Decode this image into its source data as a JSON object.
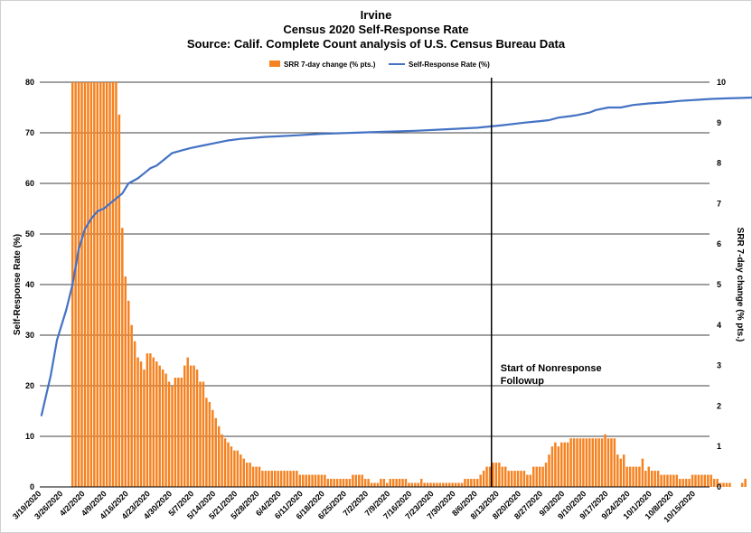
{
  "chart_data": {
    "type": "bar+line",
    "title": "Irvine",
    "subtitle": "Census 2020 Self-Response Rate",
    "source": "Source: Calif. Complete Count analysis of U.S. Census Bureau Data",
    "ylabel_left": "Self-Response Rate (%)",
    "ylabel_right": "SRR 7-day change (% pts.)",
    "ylim_left": [
      0,
      80
    ],
    "ylim_right": [
      0,
      10
    ],
    "yticks_left": [
      "0",
      "10",
      "20",
      "30",
      "40",
      "50",
      "60",
      "70",
      "80"
    ],
    "yticks_right": [
      "0",
      "1",
      "2",
      "3",
      "4",
      "5",
      "6",
      "7",
      "8",
      "9",
      "10"
    ],
    "grid": "horizontal",
    "legend_position": "top",
    "start_date": "3/19/2020",
    "x_tick_labels": [
      "3/19/2020",
      "3/26/2020",
      "4/2/2020",
      "4/9/2020",
      "4/16/2020",
      "4/23/2020",
      "4/30/2020",
      "5/7/2020",
      "5/14/2020",
      "5/21/2020",
      "5/28/2020",
      "6/4/2020",
      "6/11/2020",
      "6/18/2020",
      "6/25/2020",
      "7/2/2020",
      "7/9/2020",
      "7/16/2020",
      "7/23/2020",
      "7/30/2020",
      "8/6/2020",
      "8/13/2020",
      "8/20/2020",
      "8/27/2020",
      "9/3/2020",
      "9/10/2020",
      "9/17/2020",
      "9/24/2020",
      "10/1/2020",
      "10/8/2020",
      "10/15/2020"
    ],
    "series": [
      {
        "name": "SRR 7-day change (% pts.)",
        "type": "bar",
        "axis": "right",
        "color": "#F58220",
        "values": [
          0,
          0,
          0,
          0,
          0,
          0,
          0,
          0,
          0,
          0,
          10,
          10,
          10,
          10,
          10,
          10,
          10,
          10,
          10,
          10,
          10,
          10,
          10,
          10,
          10,
          9.2,
          6.4,
          5.2,
          4.6,
          4.0,
          3.6,
          3.2,
          3.1,
          2.9,
          3.3,
          3.3,
          3.2,
          3.1,
          3.0,
          2.9,
          2.8,
          2.6,
          2.5,
          2.7,
          2.7,
          2.7,
          3.0,
          3.2,
          3.0,
          3.0,
          2.9,
          2.6,
          2.6,
          2.2,
          2.1,
          1.9,
          1.7,
          1.5,
          1.3,
          1.2,
          1.1,
          1.0,
          0.9,
          0.9,
          0.8,
          0.7,
          0.6,
          0.6,
          0.5,
          0.5,
          0.5,
          0.4,
          0.4,
          0.4,
          0.4,
          0.4,
          0.4,
          0.4,
          0.4,
          0.4,
          0.4,
          0.4,
          0.4,
          0.3,
          0.3,
          0.3,
          0.3,
          0.3,
          0.3,
          0.3,
          0.3,
          0.3,
          0.2,
          0.2,
          0.2,
          0.2,
          0.2,
          0.2,
          0.2,
          0.2,
          0.3,
          0.3,
          0.3,
          0.3,
          0.2,
          0.2,
          0.1,
          0.1,
          0.1,
          0.2,
          0.2,
          0.1,
          0.2,
          0.2,
          0.2,
          0.2,
          0.2,
          0.2,
          0.1,
          0.1,
          0.1,
          0.1,
          0.2,
          0.1,
          0.1,
          0.1,
          0.1,
          0.1,
          0.1,
          0.1,
          0.1,
          0.1,
          0.1,
          0.1,
          0.1,
          0.1,
          0.2,
          0.2,
          0.2,
          0.2,
          0.2,
          0.3,
          0.4,
          0.5,
          0.5,
          0.6,
          0.6,
          0.6,
          0.5,
          0.5,
          0.4,
          0.4,
          0.4,
          0.4,
          0.4,
          0.4,
          0.3,
          0.3,
          0.5,
          0.5,
          0.5,
          0.5,
          0.6,
          0.8,
          1.0,
          1.1,
          1.0,
          1.1,
          1.1,
          1.1,
          1.2,
          1.2,
          1.2,
          1.2,
          1.2,
          1.2,
          1.2,
          1.2,
          1.2,
          1.2,
          1.2,
          1.3,
          1.2,
          1.2,
          1.2,
          0.8,
          0.7,
          0.8,
          0.5,
          0.5,
          0.5,
          0.5,
          0.5,
          0.7,
          0.4,
          0.5,
          0.4,
          0.4,
          0.4,
          0.3,
          0.3,
          0.3,
          0.3,
          0.3,
          0.3,
          0.2,
          0.2,
          0.2,
          0.2,
          0.3,
          0.3,
          0.3,
          0.3,
          0.3,
          0.3,
          0.3,
          0.2,
          0.2,
          0.1,
          0.1,
          0.1,
          0.1,
          0,
          0,
          0,
          0.1,
          0.2
        ]
      },
      {
        "name": "Self-Response Rate (%)",
        "type": "line",
        "axis": "left",
        "color": "#4472C4",
        "points": [
          [
            0,
            14
          ],
          [
            3,
            22
          ],
          [
            5,
            29
          ],
          [
            8,
            35
          ],
          [
            10,
            40
          ],
          [
            12,
            47
          ],
          [
            14,
            51
          ],
          [
            16,
            53
          ],
          [
            18,
            54.5
          ],
          [
            20,
            55
          ],
          [
            23,
            56.5
          ],
          [
            26,
            58
          ],
          [
            28,
            60
          ],
          [
            31,
            61
          ],
          [
            33,
            62
          ],
          [
            35,
            63
          ],
          [
            37,
            63.5
          ],
          [
            40,
            65
          ],
          [
            42,
            66
          ],
          [
            45,
            66.5
          ],
          [
            48,
            67
          ],
          [
            52,
            67.5
          ],
          [
            56,
            68
          ],
          [
            60,
            68.5
          ],
          [
            64,
            68.8
          ],
          [
            68,
            69
          ],
          [
            72,
            69.2
          ],
          [
            76,
            69.3
          ],
          [
            82,
            69.5
          ],
          [
            90,
            69.8
          ],
          [
            100,
            70
          ],
          [
            110,
            70.2
          ],
          [
            120,
            70.4
          ],
          [
            130,
            70.7
          ],
          [
            140,
            71
          ],
          [
            148,
            71.5
          ],
          [
            155,
            72
          ],
          [
            160,
            72.3
          ],
          [
            163,
            72.5
          ],
          [
            166,
            73
          ],
          [
            170,
            73.3
          ],
          [
            172,
            73.5
          ],
          [
            176,
            74
          ],
          [
            178,
            74.5
          ],
          [
            182,
            75
          ],
          [
            186,
            75
          ],
          [
            190,
            75.5
          ],
          [
            195,
            75.8
          ],
          [
            200,
            76
          ],
          [
            205,
            76.3
          ],
          [
            210,
            76.5
          ],
          [
            215,
            76.7
          ],
          [
            220,
            76.8
          ],
          [
            225,
            76.9
          ],
          [
            230,
            77
          ],
          [
            235,
            77.2
          ]
        ]
      }
    ],
    "annotation": {
      "text_line1": "Start of Nonresponse",
      "text_line2": "Followup",
      "at_date": "8/11/2020"
    }
  }
}
